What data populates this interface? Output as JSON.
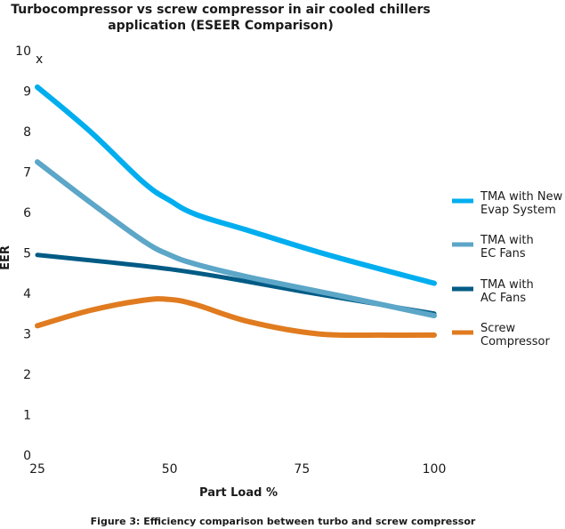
{
  "chart_data": {
    "type": "line",
    "title_lines": [
      "Turbocompressor vs screw compressor in air cooled chillers",
      "application (ESEER Comparison)"
    ],
    "xlabel": "Part Load %",
    "ylabel": "EER",
    "xlim": [
      25,
      100
    ],
    "ylim": [
      0,
      10
    ],
    "x_ticks": [
      25,
      50,
      75,
      100
    ],
    "y_ticks": [
      0,
      1,
      2,
      3,
      4,
      5,
      6,
      7,
      8,
      9,
      10
    ],
    "y_axis_suffix": "x",
    "grid": false,
    "legend_position": "right",
    "series": [
      {
        "name": "TMA with New Evap System",
        "legend_lines": [
          "TMA with New",
          "Evap System"
        ],
        "color": "#00aeef",
        "x": [
          25,
          35,
          45,
          50,
          55,
          65,
          80,
          100
        ],
        "y": [
          9.1,
          8.0,
          6.75,
          6.3,
          5.95,
          5.55,
          4.95,
          4.25
        ]
      },
      {
        "name": "TMA with EC Fans",
        "legend_lines": [
          "TMA with",
          "EC Fans"
        ],
        "color": "#5ca6c8",
        "x": [
          25,
          35,
          45,
          50,
          55,
          65,
          80,
          100
        ],
        "y": [
          7.25,
          6.25,
          5.3,
          4.95,
          4.72,
          4.4,
          4.0,
          3.45
        ]
      },
      {
        "name": "TMA with AC Fans",
        "legend_lines": [
          "TMA with",
          "AC Fans"
        ],
        "color": "#005b85",
        "x": [
          25,
          40,
          50,
          60,
          75,
          100
        ],
        "y": [
          4.95,
          4.75,
          4.6,
          4.4,
          4.05,
          3.5
        ]
      },
      {
        "name": "Screw Compressor",
        "legend_lines": [
          "Screw",
          "Compressor"
        ],
        "color": "#e07b1f",
        "x": [
          25,
          35,
          45,
          50,
          55,
          65,
          78,
          90,
          100
        ],
        "y": [
          3.2,
          3.58,
          3.83,
          3.85,
          3.72,
          3.3,
          3.0,
          2.97,
          2.97
        ]
      }
    ]
  },
  "caption": "Figure 3: Efficiency comparison between turbo and screw compressor"
}
